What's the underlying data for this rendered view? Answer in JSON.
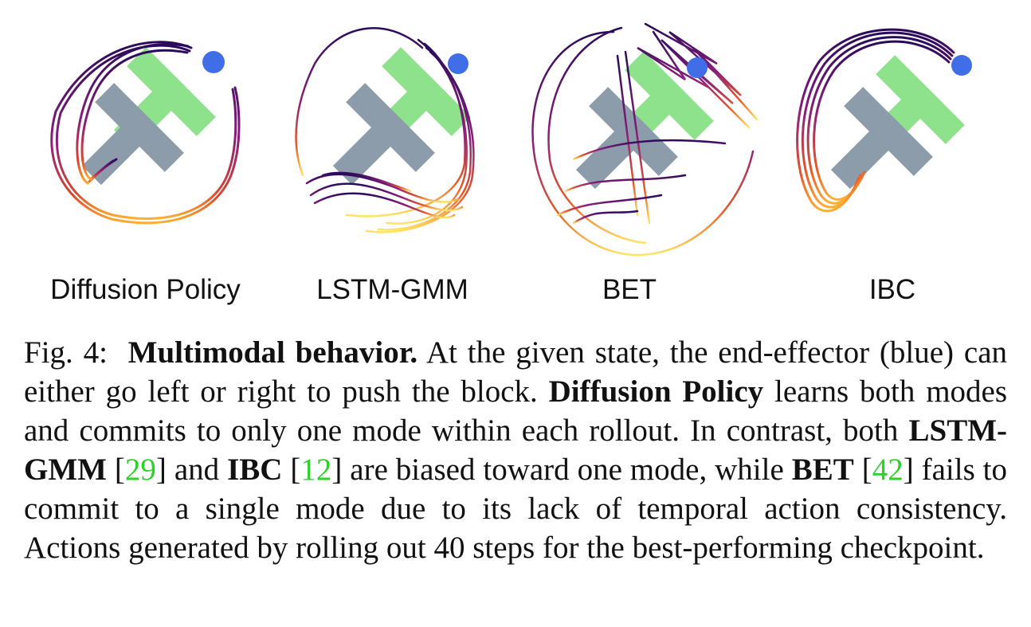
{
  "panels": [
    {
      "label": "Diffusion Policy"
    },
    {
      "label": "LSTM-GMM"
    },
    {
      "label": "BET"
    },
    {
      "label": "IBC"
    }
  ],
  "colors": {
    "target_block": "#8fe28c",
    "current_block": "#8c9caa",
    "end_effector": "#3f6ee6",
    "trajectory_start": "#2a0a5a",
    "trajectory_end": "#ffe566",
    "citation": "#2ed02e"
  },
  "caption": {
    "fig": "Fig. 4:",
    "title": "Multimodal behavior.",
    "t1": "At the given state, the end-effector (blue) can either go left or right to push the block.",
    "dp": "Diffusion Policy",
    "t2": "learns both modes and commits to only one mode within each rollout. In contrast, both",
    "lstm": "LSTM-GMM",
    "c1": "29",
    "t3": "and",
    "ibc": "IBC",
    "c2": "12",
    "t4": "are biased toward one mode, while",
    "bet": "BET",
    "c3": "42",
    "t5": "fails to commit to a single mode due to its lack of temporal action consistency. Actions generated by rolling out 40 steps for the best-performing checkpoint."
  }
}
